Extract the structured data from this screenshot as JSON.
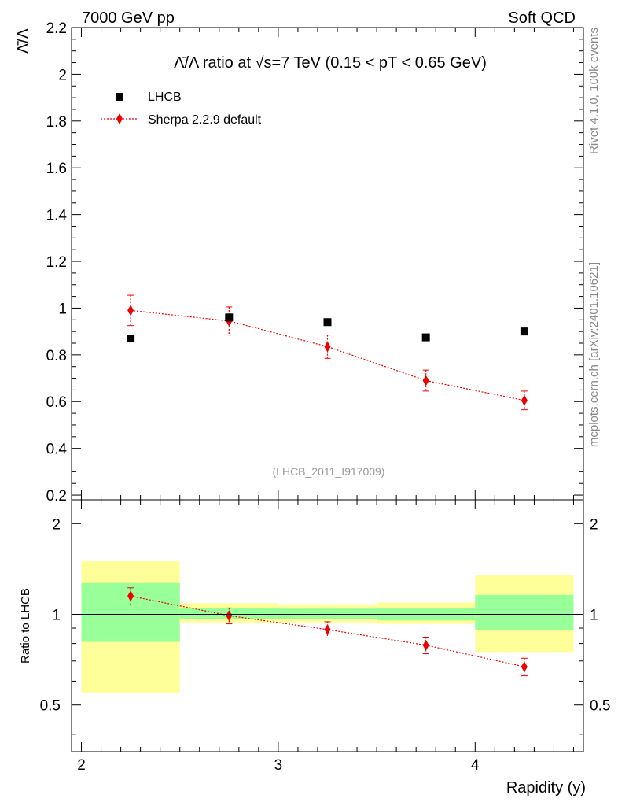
{
  "header": {
    "left": "7000 GeV pp",
    "right": "Soft QCD"
  },
  "side": {
    "rivet": "Rivet 4.1.0,  100k events",
    "mcplots": "mcplots.cern.ch [arXiv:2401.10621]"
  },
  "colors": {
    "mc": "#ee0000",
    "data": "#000000",
    "band_inner": "#99ff99",
    "band_outer": "#ffff99"
  },
  "chart_data": [
    {
      "type": "scatter",
      "title": "Λ̄/Λ ratio at √s=7 TeV (0.15 < pT < 0.65 GeV)",
      "ylabel": "Λ̄/Λ",
      "xlabel": "Rapidity (y)",
      "xlim": [
        1.95,
        4.55
      ],
      "ylim": [
        0.18,
        2.2
      ],
      "yticks": [
        "0.2",
        "0.4",
        "0.6",
        "0.8",
        "1",
        "1.2",
        "1.4",
        "1.6",
        "1.8",
        "2",
        "2.2"
      ],
      "analysis_id": "(LHCB_2011_I917009)",
      "legend_position": "top-left",
      "series": [
        {
          "name": "LHCB",
          "marker": "square",
          "x": [
            2.25,
            2.75,
            3.25,
            3.75,
            4.25
          ],
          "y": [
            0.87,
            0.96,
            0.94,
            0.875,
            0.9
          ]
        },
        {
          "name": "Sherpa 2.2.9 default",
          "marker": "diamond",
          "x": [
            2.25,
            2.75,
            3.25,
            3.75,
            4.25
          ],
          "y": [
            0.99,
            0.945,
            0.835,
            0.69,
            0.605
          ],
          "yerr": [
            0.065,
            0.06,
            0.05,
            0.045,
            0.04
          ]
        }
      ]
    },
    {
      "type": "ratio",
      "ylabel": "Ratio to LHCB",
      "xlim": [
        1.95,
        4.55
      ],
      "ylim": [
        0.35,
        2.4
      ],
      "yticks": [
        "0.5",
        "1",
        "2"
      ],
      "xticks": [
        "2",
        "3",
        "4"
      ],
      "bins": [
        {
          "lo": 2.0,
          "hi": 2.5,
          "inner": [
            0.81,
            1.27
          ],
          "outer": [
            0.55,
            1.5
          ]
        },
        {
          "lo": 2.5,
          "hi": 3.0,
          "inner": [
            0.965,
            1.05
          ],
          "outer": [
            0.94,
            1.09
          ]
        },
        {
          "lo": 3.0,
          "hi": 3.5,
          "inner": [
            0.965,
            1.045
          ],
          "outer": [
            0.94,
            1.08
          ]
        },
        {
          "lo": 3.5,
          "hi": 4.0,
          "inner": [
            0.955,
            1.05
          ],
          "outer": [
            0.93,
            1.095
          ]
        },
        {
          "lo": 4.0,
          "hi": 4.5,
          "inner": [
            0.885,
            1.16
          ],
          "outer": [
            0.75,
            1.35
          ]
        }
      ],
      "mc_ratio": {
        "x": [
          2.25,
          2.75,
          3.25,
          3.75,
          4.25
        ],
        "y": [
          1.15,
          0.99,
          0.89,
          0.79,
          0.67
        ],
        "yerr": [
          0.075,
          0.06,
          0.055,
          0.05,
          0.045
        ]
      }
    }
  ]
}
